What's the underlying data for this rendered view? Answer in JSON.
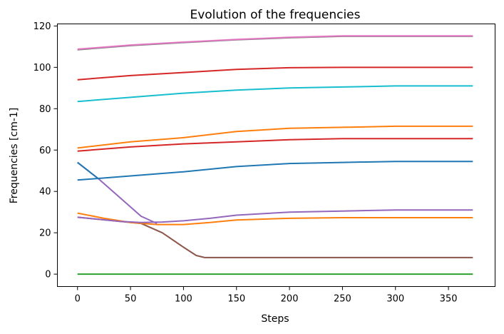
{
  "chart_data": {
    "type": "line",
    "title": "Evolution of the frequencies",
    "xlabel": "Steps",
    "ylabel": "Frequencies [cm-1]",
    "xlim": [
      -19,
      394
    ],
    "ylim": [
      -6,
      121
    ],
    "xticks": [
      0,
      50,
      100,
      150,
      200,
      250,
      300,
      350
    ],
    "yticks": [
      0,
      20,
      40,
      60,
      80,
      100,
      120
    ],
    "grid": false,
    "legend": "none",
    "series": [
      {
        "color": "#2ca02c",
        "points": [
          [
            0,
            0
          ],
          [
            100,
            0
          ],
          [
            200,
            0
          ],
          [
            300,
            0
          ],
          [
            373,
            0
          ]
        ]
      },
      {
        "color": "#8c564b",
        "points": [
          [
            0,
            27.5
          ],
          [
            30,
            26
          ],
          [
            60,
            24.5
          ],
          [
            80,
            20
          ],
          [
            100,
            13
          ],
          [
            112,
            9
          ],
          [
            120,
            8
          ],
          [
            150,
            8
          ],
          [
            250,
            8
          ],
          [
            373,
            8
          ]
        ]
      },
      {
        "color": "#ff7f0e",
        "points": [
          [
            0,
            29.5
          ],
          [
            25,
            27
          ],
          [
            50,
            25
          ],
          [
            75,
            24
          ],
          [
            100,
            24
          ],
          [
            125,
            25
          ],
          [
            150,
            26.2
          ],
          [
            200,
            27
          ],
          [
            250,
            27.3
          ],
          [
            300,
            27.3
          ],
          [
            373,
            27.3
          ]
        ]
      },
      {
        "color": "#9467bd",
        "points": [
          [
            0,
            27.5
          ],
          [
            20,
            26.5
          ],
          [
            40,
            25.5
          ],
          [
            60,
            25
          ],
          [
            80,
            25.2
          ],
          [
            100,
            25.8
          ],
          [
            125,
            27
          ],
          [
            150,
            28.5
          ],
          [
            200,
            30
          ],
          [
            250,
            30.5
          ],
          [
            300,
            31
          ],
          [
            373,
            31
          ]
        ]
      },
      {
        "color": "#9467bd",
        "points": [
          [
            0,
            54
          ],
          [
            20,
            46
          ],
          [
            40,
            37
          ],
          [
            60,
            28
          ],
          [
            75,
            24.5
          ]
        ]
      },
      {
        "color": "#1f77b4",
        "points": [
          [
            0,
            54
          ],
          [
            10,
            50
          ],
          [
            20,
            46
          ]
        ]
      },
      {
        "color": "#1f77b4",
        "points": [
          [
            0,
            45.5
          ],
          [
            50,
            47.5
          ],
          [
            100,
            49.5
          ],
          [
            150,
            52
          ],
          [
            200,
            53.5
          ],
          [
            250,
            54
          ],
          [
            300,
            54.5
          ],
          [
            373,
            54.5
          ]
        ]
      },
      {
        "color": "#d62728",
        "points": [
          [
            0,
            59.5
          ],
          [
            50,
            61.5
          ],
          [
            100,
            63
          ],
          [
            150,
            64
          ],
          [
            200,
            65
          ],
          [
            250,
            65.5
          ],
          [
            300,
            65.5
          ],
          [
            373,
            65.5
          ]
        ]
      },
      {
        "color": "#ff7f0e",
        "points": [
          [
            0,
            61
          ],
          [
            50,
            64
          ],
          [
            100,
            66
          ],
          [
            150,
            69
          ],
          [
            200,
            70.5
          ],
          [
            250,
            71
          ],
          [
            300,
            71.5
          ],
          [
            373,
            71.5
          ]
        ]
      },
      {
        "color": "#17becf",
        "points": [
          [
            0,
            83.5
          ],
          [
            50,
            85.5
          ],
          [
            100,
            87.5
          ],
          [
            150,
            89
          ],
          [
            200,
            90
          ],
          [
            250,
            90.5
          ],
          [
            300,
            91
          ],
          [
            373,
            91
          ]
        ]
      },
      {
        "color": "#d62728",
        "points": [
          [
            0,
            94
          ],
          [
            50,
            96
          ],
          [
            100,
            97.5
          ],
          [
            150,
            99
          ],
          [
            200,
            99.8
          ],
          [
            250,
            100
          ],
          [
            300,
            100
          ],
          [
            373,
            100
          ]
        ]
      },
      {
        "color": "#7f7f7f",
        "points": [
          [
            0,
            108.5
          ],
          [
            50,
            110.5
          ],
          [
            100,
            112
          ],
          [
            150,
            113.3
          ],
          [
            200,
            114.3
          ],
          [
            250,
            115
          ],
          [
            300,
            115
          ],
          [
            373,
            115
          ]
        ]
      },
      {
        "color": "#e377c2",
        "points": [
          [
            0,
            108.8
          ],
          [
            50,
            110.8
          ],
          [
            100,
            112.2
          ],
          [
            150,
            113.5
          ],
          [
            200,
            114.5
          ],
          [
            250,
            115.2
          ],
          [
            300,
            115.2
          ],
          [
            373,
            115.2
          ]
        ]
      }
    ]
  }
}
